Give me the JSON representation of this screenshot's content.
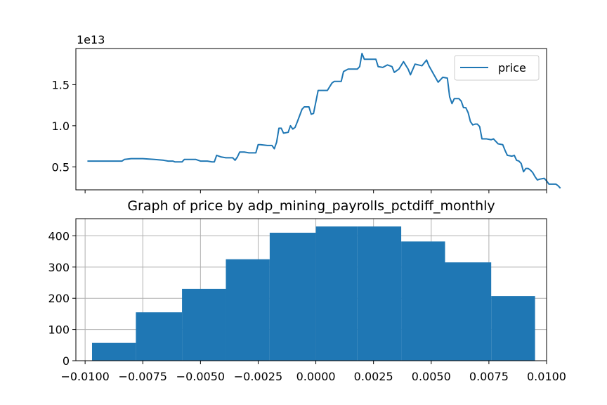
{
  "chart_data": [
    {
      "type": "line",
      "title": "",
      "xlabel": "",
      "ylabel": "",
      "offset_label": "1e13",
      "xlim": [
        -0.0104,
        0.01
      ],
      "ylim": [
        0.22,
        1.94
      ],
      "y_unit_scale": 10000000000000.0,
      "yticks": [
        0.5,
        1.0,
        1.5
      ],
      "ytick_labels": [
        "0.5",
        "1.0",
        "1.5"
      ],
      "xticks": [
        -0.01,
        -0.0075,
        -0.005,
        -0.0025,
        0.0,
        0.0025,
        0.005,
        0.0075,
        0.01
      ],
      "legend": {
        "placement": "upper right",
        "entries": [
          "price"
        ]
      },
      "grid": false,
      "series": [
        {
          "name": "price",
          "color": "#1f77b4",
          "points": [
            [
              -0.0099,
              0.57
            ],
            [
              -0.0094,
              0.57
            ],
            [
              -0.0088,
              0.57
            ],
            [
              -0.0084,
              0.57
            ],
            [
              -0.0083,
              0.59
            ],
            [
              -0.008,
              0.6
            ],
            [
              -0.0075,
              0.6
            ],
            [
              -0.007,
              0.59
            ],
            [
              -0.0066,
              0.58
            ],
            [
              -0.0064,
              0.57
            ],
            [
              -0.0062,
              0.57
            ],
            [
              -0.0061,
              0.56
            ],
            [
              -0.0058,
              0.56
            ],
            [
              -0.0057,
              0.59
            ],
            [
              -0.0054,
              0.59
            ],
            [
              -0.0052,
              0.59
            ],
            [
              -0.005,
              0.57
            ],
            [
              -0.0047,
              0.57
            ],
            [
              -0.0045,
              0.56
            ],
            [
              -0.0044,
              0.56
            ],
            [
              -0.0043,
              0.64
            ],
            [
              -0.0041,
              0.62
            ],
            [
              -0.0039,
              0.61
            ],
            [
              -0.0036,
              0.61
            ],
            [
              -0.0035,
              0.58
            ],
            [
              -0.0034,
              0.62
            ],
            [
              -0.0033,
              0.68
            ],
            [
              -0.0031,
              0.68
            ],
            [
              -0.0029,
              0.67
            ],
            [
              -0.0026,
              0.67
            ],
            [
              -0.0025,
              0.77
            ],
            [
              -0.0024,
              0.77
            ],
            [
              -0.0021,
              0.76
            ],
            [
              -0.0019,
              0.76
            ],
            [
              -0.0018,
              0.72
            ],
            [
              -0.0017,
              0.8
            ],
            [
              -0.0016,
              0.97
            ],
            [
              -0.0015,
              0.97
            ],
            [
              -0.0014,
              0.91
            ],
            [
              -0.0012,
              0.92
            ],
            [
              -0.0011,
              1.0
            ],
            [
              -0.001,
              0.96
            ],
            [
              -0.0009,
              0.98
            ],
            [
              -0.0008,
              1.05
            ],
            [
              -0.0006,
              1.2
            ],
            [
              -0.0005,
              1.23
            ],
            [
              -0.0003,
              1.23
            ],
            [
              -0.0002,
              1.14
            ],
            [
              -0.0001,
              1.15
            ],
            [
              0.0,
              1.29
            ],
            [
              0.0001,
              1.43
            ],
            [
              0.0002,
              1.43
            ],
            [
              0.0005,
              1.43
            ],
            [
              0.0007,
              1.52
            ],
            [
              0.0008,
              1.54
            ],
            [
              0.0011,
              1.54
            ],
            [
              0.0012,
              1.66
            ],
            [
              0.0014,
              1.69
            ],
            [
              0.0018,
              1.69
            ],
            [
              0.0019,
              1.72
            ],
            [
              0.002,
              1.88
            ],
            [
              0.0021,
              1.81
            ],
            [
              0.0026,
              1.81
            ],
            [
              0.0027,
              1.72
            ],
            [
              0.0029,
              1.71
            ],
            [
              0.0031,
              1.74
            ],
            [
              0.0033,
              1.72
            ],
            [
              0.0034,
              1.65
            ],
            [
              0.0036,
              1.69
            ],
            [
              0.0038,
              1.78
            ],
            [
              0.004,
              1.69
            ],
            [
              0.0041,
              1.62
            ],
            [
              0.0043,
              1.75
            ],
            [
              0.0046,
              1.73
            ],
            [
              0.0048,
              1.8
            ],
            [
              0.0049,
              1.73
            ],
            [
              0.0051,
              1.63
            ],
            [
              0.0053,
              1.53
            ],
            [
              0.0055,
              1.59
            ],
            [
              0.0057,
              1.58
            ],
            [
              0.0058,
              1.35
            ],
            [
              0.0059,
              1.27
            ],
            [
              0.006,
              1.33
            ],
            [
              0.0062,
              1.33
            ],
            [
              0.0063,
              1.3
            ],
            [
              0.0064,
              1.22
            ],
            [
              0.0065,
              1.22
            ],
            [
              0.0066,
              1.16
            ],
            [
              0.0067,
              1.05
            ],
            [
              0.0068,
              1.01
            ],
            [
              0.0069,
              1.02
            ],
            [
              0.007,
              1.02
            ],
            [
              0.0071,
              0.99
            ],
            [
              0.0072,
              0.84
            ],
            [
              0.0074,
              0.84
            ],
            [
              0.0076,
              0.83
            ],
            [
              0.0077,
              0.84
            ],
            [
              0.0078,
              0.81
            ],
            [
              0.0079,
              0.78
            ],
            [
              0.0081,
              0.77
            ],
            [
              0.0082,
              0.7
            ],
            [
              0.0083,
              0.64
            ],
            [
              0.0085,
              0.63
            ],
            [
              0.0086,
              0.64
            ],
            [
              0.0087,
              0.58
            ],
            [
              0.0088,
              0.57
            ],
            [
              0.0089,
              0.54
            ],
            [
              0.009,
              0.44
            ],
            [
              0.0091,
              0.48
            ],
            [
              0.0092,
              0.48
            ],
            [
              0.0093,
              0.46
            ],
            [
              0.0094,
              0.43
            ],
            [
              0.0095,
              0.38
            ],
            [
              0.0096,
              0.34
            ],
            [
              0.0097,
              0.35
            ],
            [
              0.0099,
              0.36
            ],
            [
              0.01,
              0.33
            ],
            [
              0.0101,
              0.29
            ],
            [
              0.0102,
              0.29
            ],
            [
              0.0104,
              0.29
            ],
            [
              0.0105,
              0.27
            ],
            [
              0.0106,
              0.24
            ]
          ]
        }
      ]
    },
    {
      "type": "bar",
      "title": "Graph of price by adp_mining_payrolls_pctdiff_monthly",
      "xlabel": "",
      "ylabel": "",
      "xlim": [
        -0.0104,
        0.01
      ],
      "ylim": [
        0,
        455
      ],
      "grid": true,
      "yticks": [
        0,
        100,
        200,
        300,
        400
      ],
      "ytick_labels": [
        "0",
        "100",
        "200",
        "300",
        "400"
      ],
      "xticks": [
        -0.01,
        -0.0075,
        -0.005,
        -0.0025,
        0.0,
        0.0025,
        0.005,
        0.0075,
        0.01
      ],
      "xtick_labels": [
        "−0.0100",
        "−0.0075",
        "−0.0050",
        "−0.0025",
        "0.0000",
        "0.0025",
        "0.0050",
        "0.0075",
        "0.0100"
      ],
      "bins": [
        {
          "x0": -0.0097,
          "x1": -0.0078,
          "value": 57
        },
        {
          "x0": -0.0078,
          "x1": -0.0058,
          "value": 155
        },
        {
          "x0": -0.0058,
          "x1": -0.0039,
          "value": 230
        },
        {
          "x0": -0.0039,
          "x1": -0.002,
          "value": 325
        },
        {
          "x0": -0.002,
          "x1": 0.0,
          "value": 410
        },
        {
          "x0": 0.0,
          "x1": 0.0018,
          "value": 430
        },
        {
          "x0": 0.0018,
          "x1": 0.0037,
          "value": 430
        },
        {
          "x0": 0.0037,
          "x1": 0.0056,
          "value": 382
        },
        {
          "x0": 0.0056,
          "x1": 0.0076,
          "value": 315
        },
        {
          "x0": 0.0076,
          "x1": 0.0095,
          "value": 207
        }
      ],
      "color": "#1f77b4"
    }
  ]
}
